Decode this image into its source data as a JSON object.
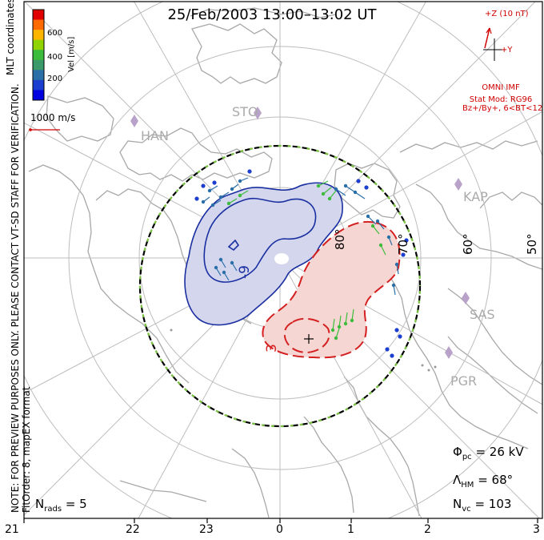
{
  "title": "25/Feb/2003 13:00–13:02 UT",
  "side_note_line1": "NOTE: FOR PREVIEW PURPOSES ONLY. PLEASE CONTACT VT-SD STAFF FOR VERIFICATION.",
  "side_note_line2": "FitOrder: 8, mapEX format",
  "mlt_label": "MLT coordinates",
  "colorbar": {
    "label": "Vel [m/s]",
    "ticks": [
      "600",
      "400",
      "200"
    ],
    "colors": [
      "#e00000",
      "#ff6a00",
      "#ffb400",
      "#8fd400",
      "#3dbb3d",
      "#3a9a6a",
      "#2a6fa8",
      "#1d3fcf",
      "#0000e0"
    ]
  },
  "vector_scale": "1000 m/s",
  "imf": {
    "z_label": "+Z (10 nT)",
    "y_label": "+Y",
    "source": "OMNI IMF",
    "model": "Stat Mod: RG96",
    "condition": "Bz+/By+, 6<BT<12"
  },
  "stations": [
    "STO",
    "HAN",
    "KAP",
    "SAS",
    "PGR"
  ],
  "latitude_labels": [
    "80°",
    "70°",
    "60°",
    "50°"
  ],
  "contour_labels": {
    "negative": "-9",
    "positive": "3"
  },
  "stats": {
    "phi_pc_sym": "Φ",
    "phi_pc_sub": "pc",
    "phi_pc_value": "= 26 kV",
    "lambda_hm_sym": "Λ",
    "lambda_hm_sub": "HM",
    "lambda_hm_value": "= 68°",
    "n_vc_sym": "N",
    "n_vc_sub": "vc",
    "n_vc_value": "= 103",
    "n_rads_sym": "N",
    "n_rads_sub": "rads",
    "n_rads_value": "= 5"
  },
  "mlt_ticks": [
    "21",
    "22",
    "23",
    "0",
    "1",
    "2",
    "3"
  ],
  "colors": {
    "land": "#a8a8a8",
    "grid": "#bdbdbd",
    "negative_cell_fill": "#d4d6ee",
    "negative_contour": "#1a2fa0",
    "positive_cell_fill": "#f6d6d2",
    "positive_contour": "#d42020",
    "hm_boundary_dash1": "#000000",
    "hm_boundary_dash2": "#7bc242",
    "imf": "#d00000",
    "station": "#b9a2c9"
  }
}
